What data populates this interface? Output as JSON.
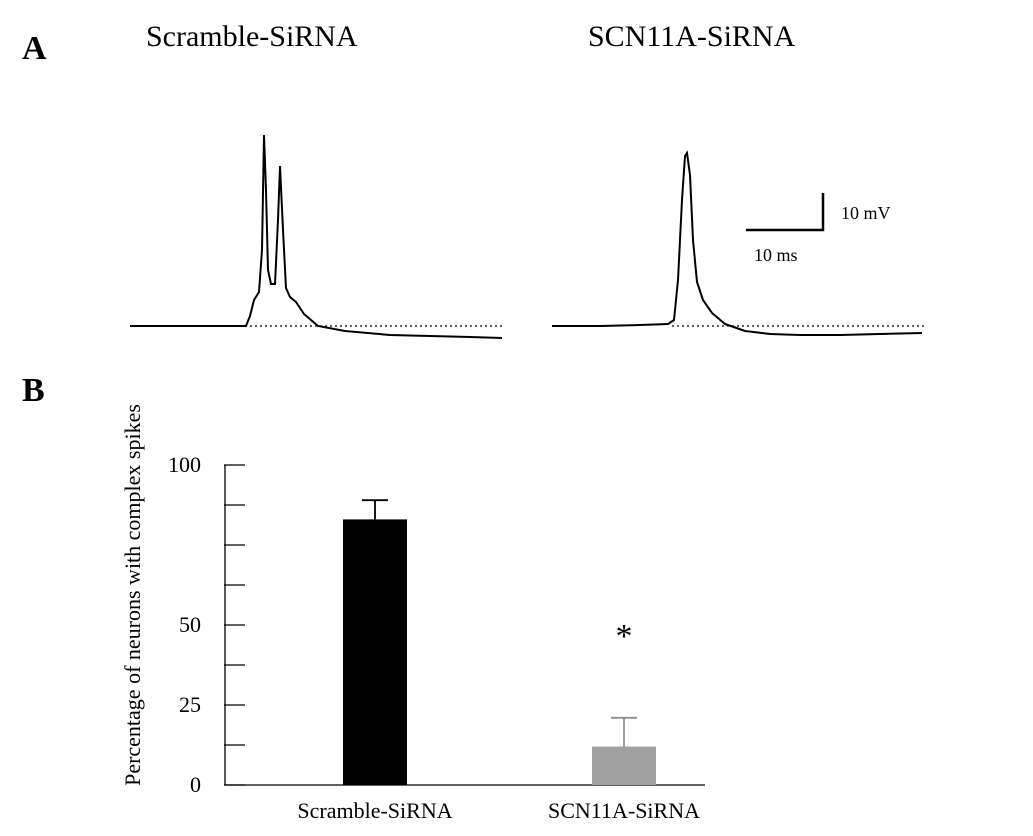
{
  "panel_a": {
    "letter": "A",
    "left_title": "Scramble-SiRNA",
    "right_title": "SCN11A-SiRNA",
    "scale_bar": {
      "voltage_label": "10 mV",
      "time_label": "10 ms"
    }
  },
  "panel_b": {
    "letter": "B"
  },
  "chart_data": {
    "type": "bar",
    "categories": [
      "Scramble-SiRNA",
      "SCN11A-SiRNA"
    ],
    "values": [
      83,
      12
    ],
    "errors": [
      6,
      9
    ],
    "bar_colors": [
      "#000000",
      "#a0a0a0"
    ],
    "error_colors": [
      "#000000",
      "#909090"
    ],
    "ylabel": "Percentage of neurons with complex spikes",
    "ylim": [
      0,
      100
    ],
    "yticks": [
      0,
      12.5,
      25,
      37.5,
      50,
      62.5,
      75,
      87.5,
      100
    ],
    "ytick_labels": [
      "0",
      "",
      "25",
      "",
      "50",
      "",
      "",
      "",
      "100"
    ],
    "annotations": [
      {
        "category": "SCN11A-SiRNA",
        "text": "*"
      }
    ]
  }
}
